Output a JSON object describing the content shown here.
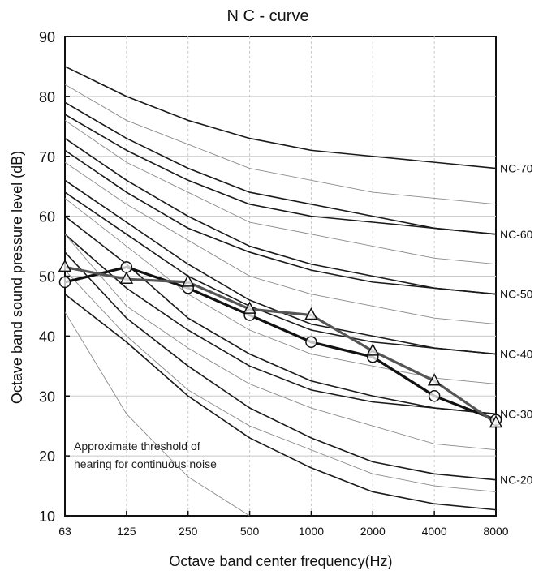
{
  "chart_data": {
    "type": "line",
    "title": "N C - curve",
    "xlabel": "Octave band center frequency(Hz)",
    "ylabel": "Octave band sound pressure level (dB)",
    "ylim": [
      10,
      90
    ],
    "y_ticks": [
      "90",
      "80",
      "70",
      "60",
      "50",
      "40",
      "30",
      "20",
      "10"
    ],
    "categories": [
      "63",
      "125",
      "250",
      "500",
      "1000",
      "2000",
      "4000",
      "8000"
    ],
    "grid": true,
    "annotation": [
      "Approximate threshold of",
      "hearing for continuous noise"
    ],
    "nc_labels": [
      "NC-70",
      "NC-60",
      "NC-50",
      "NC-40",
      "NC-30",
      "NC-20"
    ],
    "nc_curves": [
      {
        "label": "NC-70",
        "style": "thick",
        "values": [
          85,
          80,
          76,
          73,
          71,
          70,
          69,
          68
        ]
      },
      {
        "label": "",
        "style": "thin",
        "values": [
          82,
          76,
          72,
          68,
          66,
          64,
          63,
          62
        ]
      },
      {
        "label": "",
        "style": "thick",
        "values": [
          79,
          73,
          68,
          64,
          62,
          60,
          58,
          57
        ]
      },
      {
        "label": "NC-60",
        "style": "thick",
        "values": [
          77,
          71,
          66,
          62,
          60,
          59,
          58,
          57
        ]
      },
      {
        "label": "",
        "style": "thin",
        "values": [
          76,
          69,
          64,
          59,
          57,
          55,
          53,
          52
        ]
      },
      {
        "label": "",
        "style": "thick",
        "values": [
          73,
          66,
          60,
          55,
          52,
          50,
          48,
          47
        ]
      },
      {
        "label": "NC-50",
        "style": "thick",
        "values": [
          71,
          64,
          58,
          54,
          51,
          49,
          48,
          47
        ]
      },
      {
        "label": "",
        "style": "thin",
        "values": [
          69,
          62,
          56,
          50,
          47,
          45,
          43,
          42
        ]
      },
      {
        "label": "",
        "style": "thick",
        "values": [
          66,
          59,
          52,
          46,
          42,
          40,
          38,
          37
        ]
      },
      {
        "label": "NC-40",
        "style": "thick",
        "values": [
          64,
          57,
          50,
          45,
          41,
          39,
          38,
          37
        ]
      },
      {
        "label": "",
        "style": "thin",
        "values": [
          63,
          55,
          47,
          41,
          37,
          35,
          33,
          32
        ]
      },
      {
        "label": "",
        "style": "thick",
        "values": [
          60,
          52,
          43,
          37,
          32.5,
          30,
          28,
          27
        ]
      },
      {
        "label": "NC-30",
        "style": "thick",
        "values": [
          57,
          48,
          41,
          35,
          31,
          29,
          28,
          27
        ]
      },
      {
        "label": "",
        "style": "thin",
        "values": [
          57,
          45,
          38,
          32,
          28,
          25,
          22,
          21
        ]
      },
      {
        "label": "NC-20",
        "style": "thick",
        "values": [
          54,
          43,
          35,
          28,
          23,
          19,
          17,
          16
        ]
      },
      {
        "label": "",
        "style": "thin",
        "values": [
          51,
          40,
          31,
          25,
          21,
          17,
          15,
          14
        ]
      },
      {
        "label": "",
        "style": "thick",
        "values": [
          47,
          39,
          30,
          23,
          18,
          14,
          12,
          11
        ]
      },
      {
        "label": "",
        "style": "thin",
        "values": [
          44,
          27,
          16.5,
          10,
          null,
          null,
          null,
          null
        ]
      }
    ],
    "series": [
      {
        "marker": "circle",
        "color": "#111111",
        "values": [
          49,
          51.5,
          48,
          43.5,
          39,
          36.5,
          30,
          26
        ]
      },
      {
        "marker": "triangle",
        "color": "#555555",
        "values": [
          51.5,
          49.5,
          49,
          44.5,
          43.5,
          37.5,
          32.5,
          25.5
        ]
      }
    ]
  }
}
